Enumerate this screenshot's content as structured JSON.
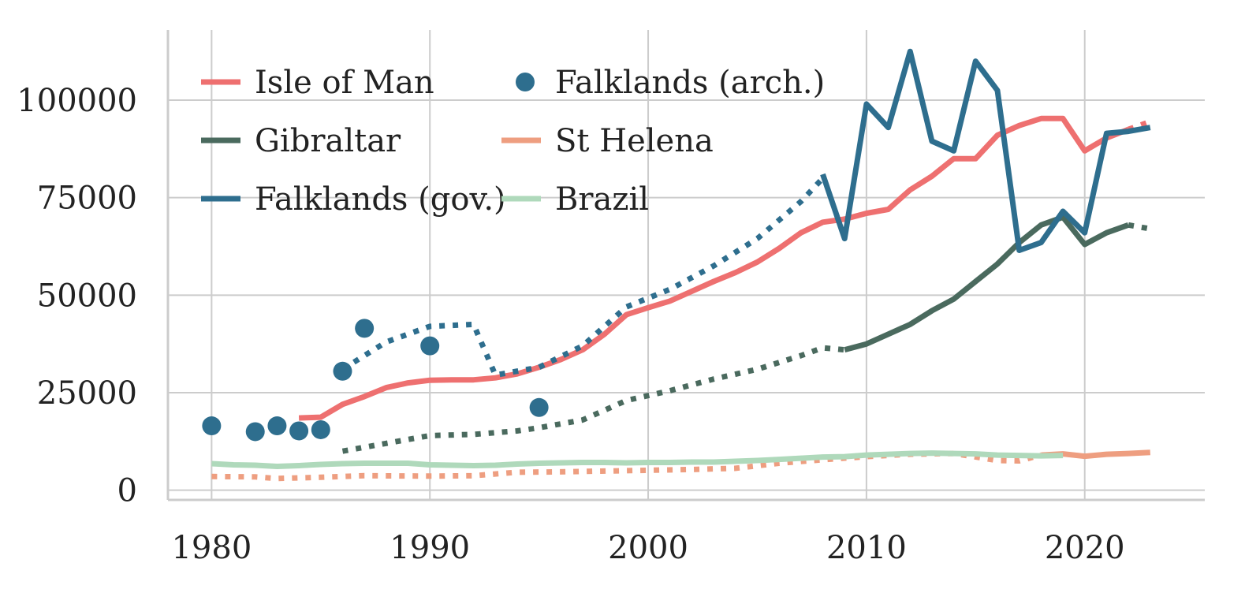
{
  "chart_data": {
    "type": "line",
    "title": "",
    "xlabel": "",
    "ylabel": "",
    "xlim": [
      1978,
      2025.5
    ],
    "ylim": [
      -2500,
      118000
    ],
    "xticks": [
      "1980",
      "1990",
      "2000",
      "2010",
      "2020"
    ],
    "yticks": [
      "0",
      "25000",
      "50000",
      "75000",
      "100000"
    ],
    "grid": true,
    "legend": {
      "placement": "top-left",
      "columns": 2,
      "entries": [
        "Isle of Man",
        "Gibraltar",
        "Falklands (gov.)",
        "Falklands (arch.)",
        "St Helena",
        "Brazil"
      ]
    },
    "series": [
      {
        "name": "Isle of Man",
        "color": "#ee7070",
        "style": "solid",
        "x": [
          1984,
          1985,
          1986,
          1987,
          1988,
          1989,
          1990,
          1991,
          1992,
          1993,
          1994,
          1995,
          1996,
          1997,
          1998,
          1999,
          2000,
          2001,
          2002,
          2003,
          2004,
          2005,
          2006,
          2007,
          2008,
          2009,
          2010,
          2011,
          2012,
          2013,
          2014,
          2015,
          2016,
          2017,
          2018,
          2019,
          2020,
          2021,
          2022
        ],
        "y": [
          18500,
          18700,
          22000,
          24000,
          26300,
          27500,
          28200,
          28300,
          28300,
          28800,
          29800,
          31500,
          33500,
          36000,
          40000,
          45000,
          46800,
          48500,
          51000,
          53500,
          55800,
          58500,
          62000,
          66000,
          68700,
          69500,
          71000,
          72000,
          77000,
          80500,
          85000,
          85000,
          91000,
          93500,
          95300,
          95300,
          87000,
          90300,
          92500
        ]
      },
      {
        "name": "",
        "color": "#ee7070",
        "style": "dotted",
        "x": [
          2022,
          2023
        ],
        "y": [
          92500,
          94500
        ]
      },
      {
        "name": "Gibraltar",
        "color": "#4a6a5e",
        "style": "solid",
        "x": [
          2009,
          2010,
          2011,
          2012,
          2013,
          2014,
          2015,
          2016,
          2017,
          2018,
          2019,
          2020,
          2021,
          2022
        ],
        "y": [
          36000,
          37500,
          40000,
          42500,
          46000,
          49000,
          53500,
          58000,
          63500,
          68000,
          70000,
          63000,
          66000,
          68000
        ]
      },
      {
        "name": "",
        "color": "#4a6a5e",
        "style": "dotted",
        "x": [
          1986,
          1988,
          1990,
          1992,
          1994,
          1995,
          1997,
          1999,
          2001,
          2003,
          2005,
          2007,
          2008,
          2009
        ],
        "y": [
          10000,
          12000,
          14000,
          14300,
          15200,
          16000,
          18000,
          23000,
          25500,
          28500,
          31000,
          34500,
          36500,
          36000
        ]
      },
      {
        "name": "",
        "color": "#4a6a5e",
        "style": "dotted",
        "x": [
          2022,
          2023
        ],
        "y": [
          68000,
          67000
        ]
      },
      {
        "name": "Falklands (gov.)",
        "color": "#2e6e8e",
        "style": "solid",
        "x": [
          2008,
          2009,
          2010,
          2011,
          2012,
          2013,
          2014,
          2015,
          2016,
          2017,
          2018,
          2019,
          2020,
          2021,
          2022,
          2023
        ],
        "y": [
          81000,
          64500,
          99000,
          93000,
          112500,
          89500,
          87000,
          110000,
          102500,
          61500,
          63500,
          71500,
          66000,
          91500,
          92000,
          93000
        ]
      },
      {
        "name": "",
        "color": "#2e6e8e",
        "style": "dotted",
        "x": [
          1986,
          1988,
          1990,
          1992,
          1993,
          1995,
          1997,
          1999,
          2001,
          2003,
          2005,
          2007,
          2008
        ],
        "y": [
          31000,
          38000,
          42000,
          42500,
          29500,
          31500,
          37000,
          47000,
          51500,
          57500,
          64500,
          74000,
          80000
        ]
      },
      {
        "name": "St Helena",
        "color": "#ee9e80",
        "style": "solid",
        "x": [
          2018,
          2019,
          2020,
          2021,
          2022,
          2023
        ],
        "y": [
          9000,
          9300,
          8700,
          9200,
          9400,
          9700
        ]
      },
      {
        "name": "",
        "color": "#ee9e80",
        "style": "dotted",
        "x": [
          1980,
          1982,
          1983,
          1985,
          1987,
          1990,
          1992,
          1994,
          1996,
          1998,
          2000,
          2002,
          2004,
          2006,
          2008,
          2010,
          2012,
          2014,
          2016,
          2017,
          2018
        ],
        "y": [
          3500,
          3400,
          3000,
          3300,
          3700,
          3600,
          3700,
          4600,
          4700,
          4900,
          5100,
          5300,
          5600,
          6900,
          7800,
          8600,
          9200,
          9400,
          7600,
          7500,
          9000
        ]
      },
      {
        "name": "Brazil",
        "color": "#afd9bb",
        "style": "solid",
        "x": [
          1980,
          1981,
          1982,
          1983,
          1984,
          1985,
          1986,
          1987,
          1988,
          1989,
          1990,
          1991,
          1992,
          1993,
          1994,
          1995,
          1996,
          1997,
          1998,
          1999,
          2000,
          2001,
          2002,
          2003,
          2004,
          2005,
          2006,
          2007,
          2008,
          2009,
          2010,
          2011,
          2012,
          2013,
          2014,
          2015,
          2016,
          2017,
          2018,
          2019
        ],
        "y": [
          6800,
          6500,
          6400,
          6100,
          6300,
          6600,
          6800,
          6900,
          6900,
          6900,
          6500,
          6400,
          6300,
          6400,
          6700,
          6900,
          7000,
          7100,
          7100,
          7000,
          7100,
          7100,
          7200,
          7200,
          7400,
          7600,
          7900,
          8200,
          8500,
          8600,
          9000,
          9200,
          9400,
          9500,
          9400,
          9300,
          9000,
          8900,
          8800,
          8900
        ]
      },
      {
        "name": "Falklands (arch.)",
        "color": "#2e6e8e",
        "style": "markers",
        "x": [
          1980,
          1982,
          1983,
          1984,
          1985,
          1986,
          1987,
          1990,
          1995
        ],
        "y": [
          16500,
          15000,
          16500,
          15200,
          15500,
          30500,
          41500,
          37000,
          21200
        ]
      }
    ]
  }
}
